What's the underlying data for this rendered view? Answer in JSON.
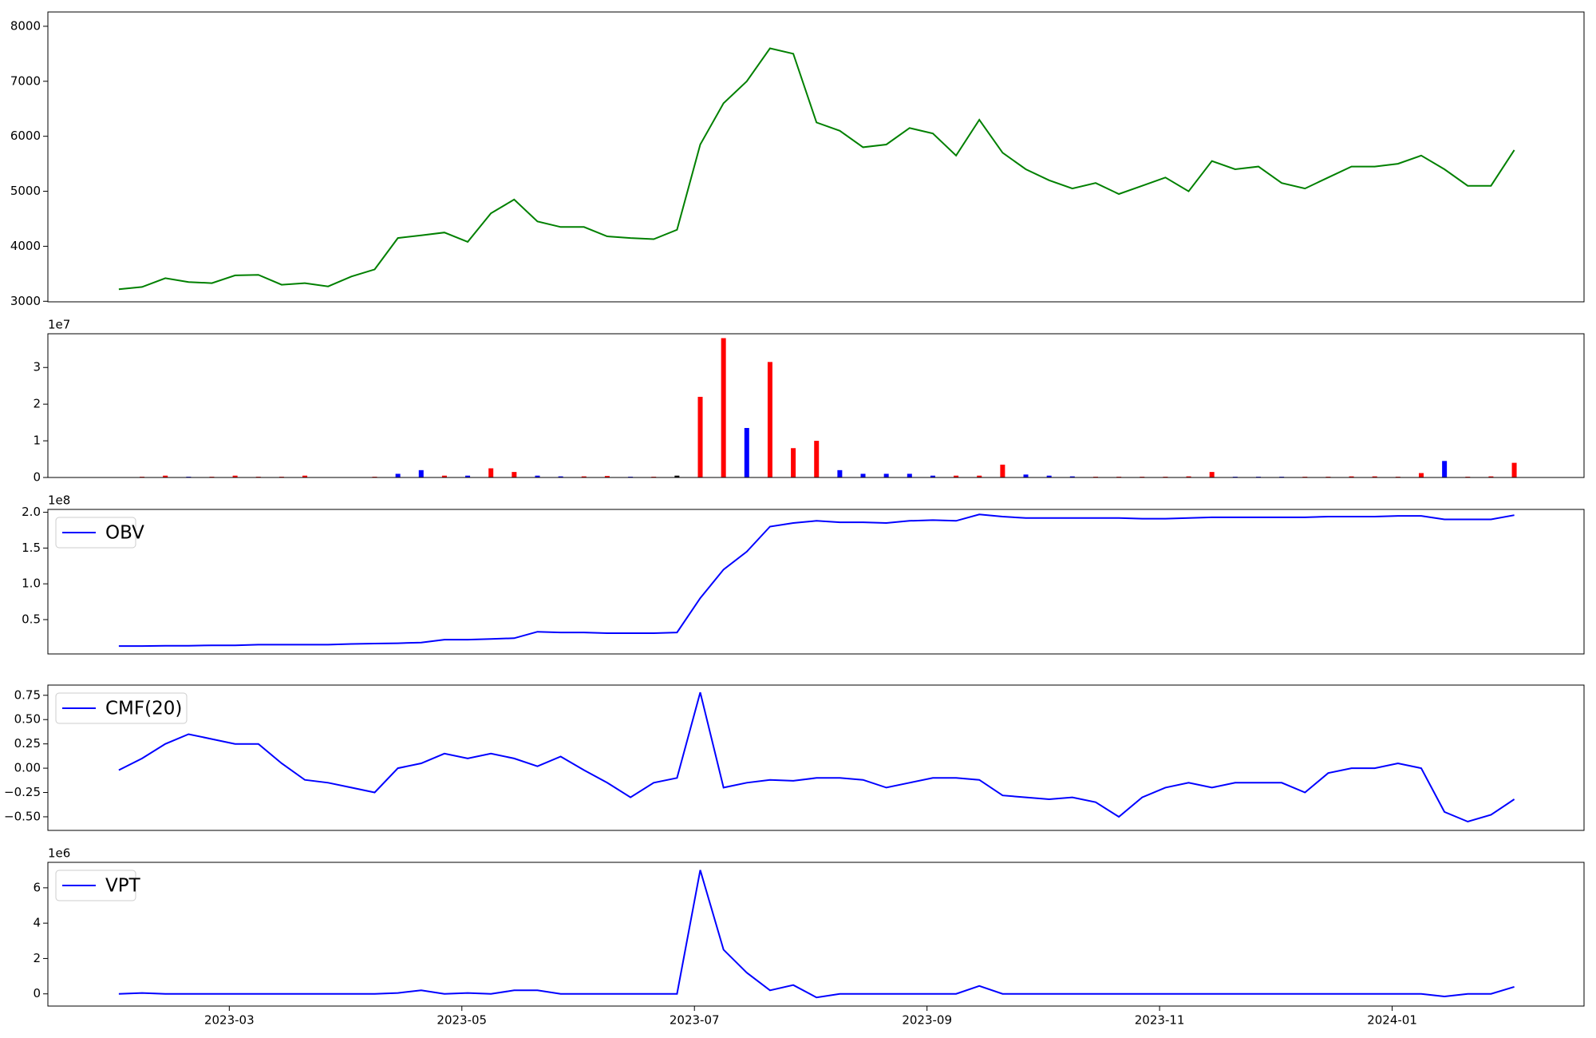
{
  "chart_data": [
    {
      "type": "line",
      "color": "#008000",
      "x": [
        2.05,
        2.25,
        2.45,
        2.65,
        2.85,
        3.05,
        3.25,
        3.45,
        3.65,
        3.85,
        4.05,
        4.25,
        4.45,
        4.65,
        4.85,
        5.05,
        5.25,
        5.45,
        5.65,
        5.85,
        6.05,
        6.25,
        6.45,
        6.65,
        6.85,
        7.05,
        7.25,
        7.45,
        7.65,
        7.85,
        8.05,
        8.25,
        8.45,
        8.65,
        8.85,
        9.05,
        9.25,
        9.45,
        9.65,
        9.85,
        10.05,
        10.25,
        10.45,
        10.65,
        10.85,
        11.05,
        11.25,
        11.45,
        11.65,
        11.85,
        12.05,
        12.25,
        12.45,
        12.65,
        12.85,
        13.05,
        13.25,
        13.45,
        13.65,
        13.85,
        14.05
      ],
      "xlim": [
        1.44,
        14.65
      ],
      "values": [
        3220,
        3260,
        3420,
        3350,
        3330,
        3470,
        3480,
        3300,
        3330,
        3270,
        3450,
        3580,
        4150,
        4200,
        4250,
        4080,
        4600,
        4850,
        4450,
        4350,
        4350,
        4180,
        4150,
        4130,
        4300,
        5850,
        6600,
        7000,
        7600,
        7500,
        6250,
        6100,
        5800,
        5850,
        6150,
        6050,
        5650,
        6300,
        5700,
        5400,
        5200,
        5050,
        5150,
        4950,
        5100,
        5250,
        5000,
        5550,
        5400,
        5450,
        5150,
        5050,
        5250,
        5450,
        5450,
        5500,
        5650,
        5400,
        5100,
        5100,
        5750
      ],
      "ylim": [
        2990,
        8260
      ],
      "yticks": [
        3000,
        4000,
        5000,
        6000,
        7000,
        8000
      ]
    },
    {
      "type": "bar",
      "offset_text": "1e7",
      "values": [
        0.01,
        0.02,
        0.05,
        0.02,
        0.02,
        0.05,
        0.02,
        0.02,
        0.05,
        0.01,
        0.01,
        0.02,
        0.1,
        0.2,
        0.05,
        0.05,
        0.25,
        0.15,
        0.05,
        0.03,
        0.03,
        0.04,
        0.02,
        0.02,
        0.05,
        2.2,
        3.8,
        1.35,
        3.15,
        0.8,
        1.0,
        0.2,
        0.1,
        0.1,
        0.1,
        0.05,
        0.05,
        0.05,
        0.35,
        0.08,
        0.05,
        0.03,
        0.02,
        0.02,
        0.02,
        0.02,
        0.03,
        0.15,
        0.02,
        0.02,
        0.02,
        0.02,
        0.02,
        0.03,
        0.03,
        0.02,
        0.12,
        0.45,
        0.02,
        0.03,
        0.4
      ],
      "colors": [
        "red",
        "red",
        "red",
        "blue",
        "red",
        "red",
        "red",
        "red",
        "red",
        "blue",
        "red",
        "red",
        "blue",
        "blue",
        "red",
        "blue",
        "red",
        "red",
        "blue",
        "blue",
        "red",
        "red",
        "blue",
        "red",
        "black",
        "red",
        "red",
        "blue",
        "red",
        "red",
        "red",
        "blue",
        "blue",
        "blue",
        "blue",
        "blue",
        "red",
        "red",
        "red",
        "blue",
        "blue",
        "blue",
        "red",
        "red",
        "red",
        "red",
        "red",
        "red",
        "blue",
        "blue",
        "blue",
        "red",
        "red",
        "red",
        "red",
        "red",
        "red",
        "blue",
        "red",
        "red",
        "red"
      ],
      "ylim": [
        0,
        3.92
      ],
      "yticks": [
        0,
        1,
        2,
        3
      ]
    },
    {
      "type": "line",
      "offset_text": "1e8",
      "legend": "upper left",
      "series": [
        {
          "name": "OBV",
          "color": "#0000ff",
          "values": [
            0.13,
            0.13,
            0.135,
            0.135,
            0.14,
            0.14,
            0.15,
            0.15,
            0.15,
            0.15,
            0.16,
            0.165,
            0.17,
            0.18,
            0.22,
            0.22,
            0.23,
            0.24,
            0.33,
            0.32,
            0.32,
            0.31,
            0.31,
            0.31,
            0.32,
            0.8,
            1.2,
            1.45,
            1.8,
            1.85,
            1.88,
            1.86,
            1.86,
            1.85,
            1.88,
            1.89,
            1.88,
            1.97,
            1.94,
            1.92,
            1.92,
            1.92,
            1.92,
            1.92,
            1.91,
            1.91,
            1.92,
            1.93,
            1.93,
            1.93,
            1.93,
            1.93,
            1.94,
            1.94,
            1.94,
            1.95,
            1.95,
            1.9,
            1.9,
            1.9,
            1.96
          ]
        }
      ],
      "ylim": [
        0.02,
        2.04
      ],
      "yticks": [
        0.5,
        {
          "value": 1,
          "label": "1.0"
        },
        1.5,
        {
          "value": 2,
          "label": "2.0"
        }
      ]
    },
    {
      "type": "line",
      "legend": "upper left",
      "series": [
        {
          "name": "CMF(20)",
          "color": "#0000ff",
          "values": [
            -0.02,
            0.1,
            0.25,
            0.35,
            0.3,
            0.25,
            0.25,
            0.05,
            -0.12,
            -0.15,
            -0.2,
            -0.25,
            0.0,
            0.05,
            0.15,
            0.1,
            0.15,
            0.1,
            0.02,
            0.12,
            -0.02,
            -0.15,
            -0.3,
            -0.15,
            -0.1,
            0.78,
            -0.2,
            -0.15,
            -0.12,
            -0.13,
            -0.1,
            -0.1,
            -0.12,
            -0.2,
            -0.15,
            -0.1,
            -0.1,
            -0.12,
            -0.28,
            -0.3,
            -0.32,
            -0.3,
            -0.35,
            -0.5,
            -0.3,
            -0.2,
            -0.15,
            -0.2,
            -0.15,
            -0.15,
            -0.15,
            -0.25,
            -0.05,
            0.0,
            0.0,
            0.05,
            0.0,
            -0.45,
            -0.55,
            -0.48,
            -0.32
          ]
        }
      ],
      "ylim": [
        -0.64,
        0.855
      ],
      "yticks": [
        {
          "value": -0.5,
          "label": "−0.50"
        },
        {
          "value": -0.25,
          "label": "−0.25"
        },
        {
          "value": 0,
          "label": "0.00"
        },
        {
          "value": 0.25,
          "label": "0.25"
        },
        {
          "value": 0.5,
          "label": "0.50"
        },
        0.75
      ]
    },
    {
      "type": "line",
      "offset_text": "1e6",
      "legend": "upper left",
      "series": [
        {
          "name": "VPT",
          "color": "#0000ff",
          "values": [
            0,
            0.05,
            0,
            0,
            0,
            0,
            0,
            0,
            0,
            0,
            0,
            0,
            0.05,
            0.2,
            0,
            0.05,
            0,
            0.2,
            0.2,
            0,
            0,
            0,
            0,
            0,
            0,
            7.0,
            2.5,
            1.2,
            0.2,
            0.5,
            -0.2,
            0,
            0,
            0,
            0,
            0,
            0,
            0.45,
            0,
            0,
            0,
            0,
            0,
            0,
            0,
            0,
            0,
            0,
            0,
            0,
            0,
            0,
            0,
            0,
            0,
            0,
            0,
            -0.15,
            0,
            0,
            0.4
          ]
        }
      ],
      "ylim": [
        -0.69,
        7.44
      ],
      "yticks": [
        0,
        2,
        4,
        6
      ],
      "xticks": [
        {
          "value": 3,
          "label": "2023-03"
        },
        {
          "value": 5,
          "label": "2023-05"
        },
        {
          "value": 7,
          "label": "2023-07"
        },
        {
          "value": 9,
          "label": "2023-09"
        },
        {
          "value": 11,
          "label": "2023-11"
        },
        {
          "value": 13,
          "label": "2024-01"
        }
      ]
    }
  ]
}
